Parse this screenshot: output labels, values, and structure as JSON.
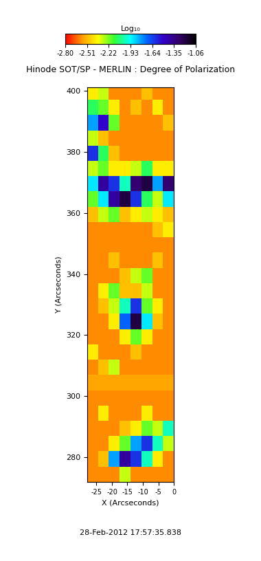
{
  "chart_data": {
    "type": "heatmap",
    "title": "Hinode SOT/SP - MERLIN : Degree of Polarization",
    "xlabel": "X (Arcseconds)",
    "ylabel": "Y (Arcseconds)",
    "annotations": [
      "28-Feb-2012 17:57:35.838"
    ],
    "xlim": [
      -28,
      0
    ],
    "xticks": [
      -25,
      -20,
      -15,
      -10,
      -5,
      0
    ],
    "ylim": [
      272,
      401
    ],
    "yticks": [
      280,
      300,
      320,
      340,
      360,
      380,
      400
    ],
    "grid": false,
    "x_edges": [
      -28,
      -24.5,
      -21,
      -17.5,
      -14,
      -10.5,
      -7,
      -3.5,
      0
    ],
    "y_edges": [
      272,
      277,
      282,
      287,
      292,
      297,
      302,
      307,
      312,
      317,
      322,
      327,
      332,
      337,
      342,
      347,
      352,
      357,
      362,
      367,
      372,
      377,
      382,
      387,
      392,
      397,
      402
    ],
    "cells": [
      [
        -2.6,
        -2.6,
        -2.6,
        -2.3,
        -2.6,
        -2.6,
        -2.6,
        -2.6
      ],
      [
        -2.6,
        -2.5,
        -1.8,
        -1.4,
        -1.6,
        -2.0,
        -2.4,
        -2.6
      ],
      [
        -2.6,
        -2.6,
        -2.4,
        -2.2,
        -1.8,
        -1.6,
        -2.0,
        -2.3
      ],
      [
        -2.6,
        -2.6,
        -2.6,
        -2.5,
        -2.4,
        -2.2,
        -2.3,
        -2.0
      ],
      [
        -2.6,
        -2.4,
        -2.6,
        -2.6,
        -2.6,
        -2.4,
        -2.6,
        -2.6
      ],
      [
        -2.6,
        -2.6,
        -2.6,
        -2.6,
        -2.6,
        -2.6,
        -2.6,
        -2.6
      ],
      [
        -2.55,
        -2.55,
        -2.55,
        -2.55,
        -2.55,
        -2.55,
        -2.55,
        -2.55
      ],
      [
        -2.6,
        -2.5,
        -2.3,
        -2.6,
        -2.6,
        -2.6,
        -2.6,
        -2.6
      ],
      [
        -2.4,
        -2.6,
        -2.6,
        -2.6,
        -2.5,
        -2.6,
        -2.6,
        -2.6
      ],
      [
        -2.6,
        -2.6,
        -2.6,
        -2.4,
        -2.2,
        -2.4,
        -2.6,
        -2.6
      ],
      [
        -2.6,
        -2.6,
        -2.4,
        -1.7,
        -1.2,
        -1.9,
        -2.5,
        -2.6
      ],
      [
        -2.6,
        -2.5,
        -2.3,
        -2.0,
        -1.6,
        -2.2,
        -2.4,
        -2.6
      ],
      [
        -2.6,
        -2.4,
        -2.2,
        -2.5,
        -2.5,
        -2.3,
        -2.6,
        -2.6
      ],
      [
        -2.6,
        -2.6,
        -2.6,
        -2.5,
        -2.3,
        -2.2,
        -2.6,
        -2.6
      ],
      [
        -2.6,
        -2.6,
        -2.5,
        -2.6,
        -2.6,
        -2.6,
        -2.5,
        -2.6
      ],
      [
        -2.6,
        -2.6,
        -2.6,
        -2.6,
        -2.6,
        -2.6,
        -2.6,
        -2.6
      ],
      [
        -2.6,
        -2.6,
        -2.6,
        -2.6,
        -2.6,
        -2.6,
        -2.5,
        -2.4
      ],
      [
        -2.5,
        -2.3,
        -2.2,
        -2.5,
        -2.4,
        -2.3,
        -2.4,
        -2.5
      ],
      [
        -2.2,
        -1.9,
        -1.4,
        -1.2,
        -1.6,
        -2.1,
        -2.3,
        -1.9
      ],
      [
        -1.9,
        -1.4,
        -1.6,
        -2.0,
        -1.3,
        -1.2,
        -1.8,
        -1.3
      ],
      [
        -2.3,
        -2.2,
        -2.4,
        -2.4,
        -2.3,
        -2.1,
        -2.4,
        -2.4
      ],
      [
        -1.6,
        -2.1,
        -2.5,
        -2.6,
        -2.6,
        -2.6,
        -2.6,
        -2.6
      ],
      [
        -2.3,
        -2.5,
        -2.6,
        -2.6,
        -2.6,
        -2.6,
        -2.6,
        -2.6
      ],
      [
        -1.8,
        -1.5,
        -2.2,
        -2.6,
        -2.6,
        -2.6,
        -2.6,
        -2.5
      ],
      [
        -2.1,
        -2.2,
        -2.4,
        -2.6,
        -2.5,
        -2.6,
        -2.4,
        -2.6
      ],
      [
        -2.4,
        -2.3,
        -2.6,
        -2.6,
        -2.6,
        -2.5,
        -2.6,
        -2.6
      ]
    ],
    "colorbar": {
      "label": "Log₁₀",
      "range": [
        -2.8,
        -1.06
      ],
      "ticks": [
        {
          "value": -2.8,
          "label": "-2.80"
        },
        -2.51,
        -2.22,
        -1.93,
        -1.64,
        -1.35,
        -1.06
      ]
    }
  }
}
